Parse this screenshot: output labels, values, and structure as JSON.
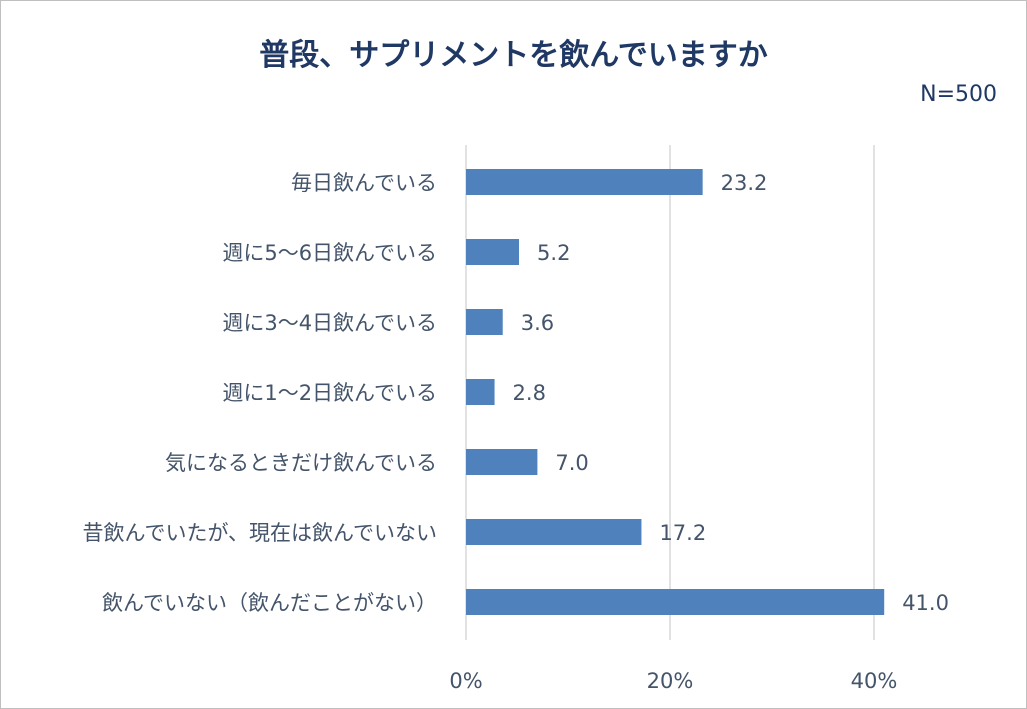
{
  "title": "普段、サプリメントを飲んでいますか",
  "sample_note": "N=500",
  "colors": {
    "bar": "#4f81bd",
    "text": "#44546a",
    "title": "#1f3864",
    "grid": "#d9d9d9"
  },
  "chart_data": {
    "type": "bar",
    "orientation": "horizontal",
    "title": "普段、サプリメントを飲んでいますか",
    "categories": [
      "毎日飲んでいる",
      "週に5～6日飲んでいる",
      "週に3～4日飲んでいる",
      "週に1～2日飲んでいる",
      "気になるときだけ飲んでいる",
      "昔飲んでいたが、現在は飲んでいない",
      "飲んでいない（飲んだことがない）"
    ],
    "values": [
      23.2,
      5.2,
      3.6,
      2.8,
      7.0,
      17.2,
      41.0
    ],
    "value_labels": [
      "23.2",
      "5.2",
      "3.6",
      "2.8",
      "7.0",
      "17.2",
      "41.0"
    ],
    "xlim": [
      0,
      40
    ],
    "xticks": [
      0,
      20,
      40
    ],
    "xtick_labels": [
      "0%",
      "20%",
      "40%"
    ],
    "xlabel": "",
    "ylabel": "",
    "grid": true,
    "legend": "none"
  }
}
